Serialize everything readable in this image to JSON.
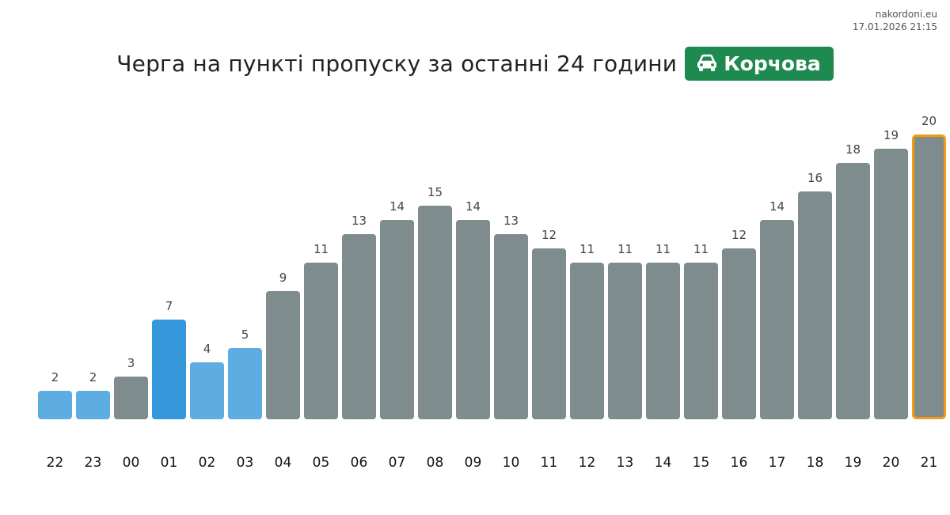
{
  "header": {
    "source": "nakordoni.eu",
    "timestamp": "17.01.2026 21:15",
    "title": "Черга на пункті пропуску за останні 24 години",
    "badge_label": "Корчова",
    "badge_icon": "car-icon",
    "badge_color": "#1e8a4f"
  },
  "colors": {
    "low": "#5dade2",
    "low_strong": "#3498db",
    "normal": "#7f8c8d",
    "highlight_outline": "#f39c12",
    "value_label": "#444444",
    "hour_label": "#111111"
  },
  "chart_data": {
    "type": "bar",
    "categories": [
      "22",
      "23",
      "00",
      "01",
      "02",
      "03",
      "04",
      "05",
      "06",
      "07",
      "08",
      "09",
      "10",
      "11",
      "12",
      "13",
      "14",
      "15",
      "16",
      "17",
      "18",
      "19",
      "20",
      "21"
    ],
    "values": [
      2,
      2,
      3,
      7,
      4,
      5,
      9,
      11,
      13,
      14,
      15,
      14,
      13,
      12,
      11,
      11,
      11,
      11,
      12,
      14,
      16,
      18,
      19,
      20
    ],
    "bar_colors": [
      "low",
      "low",
      "normal",
      "low_strong",
      "low",
      "low",
      "normal",
      "normal",
      "normal",
      "normal",
      "normal",
      "normal",
      "normal",
      "normal",
      "normal",
      "normal",
      "normal",
      "normal",
      "normal",
      "normal",
      "normal",
      "normal",
      "normal",
      "normal"
    ],
    "highlighted_index": 23,
    "title": "Черга на пункті пропуску за останні 24 години",
    "xlabel": "",
    "ylabel": "",
    "ylim": [
      0,
      20
    ],
    "grid": false,
    "legend": "none",
    "data_labels": true
  }
}
